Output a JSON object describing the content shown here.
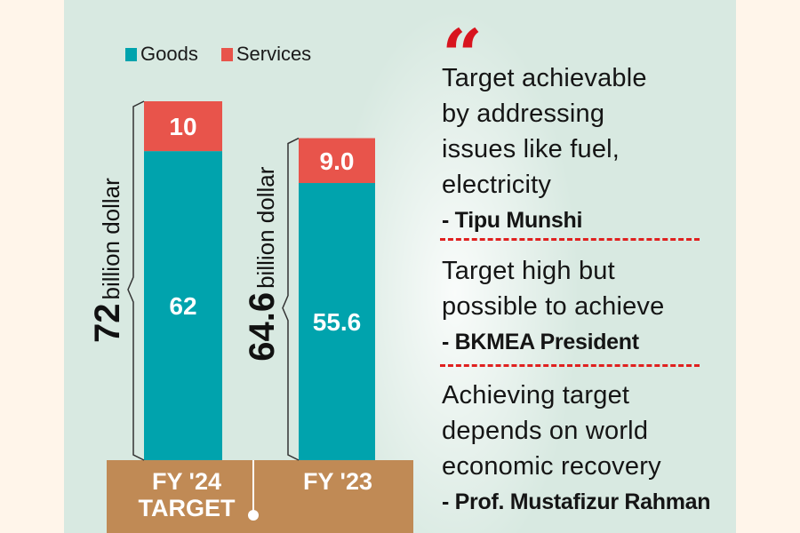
{
  "chart_data": {
    "type": "bar",
    "stacked": true,
    "title": "",
    "xlabel": "",
    "ylabel": "billion dollar",
    "categories": [
      "FY '24 TARGET",
      "FY '23"
    ],
    "category_lines": [
      [
        "FY '24",
        "TARGET"
      ],
      [
        "FY '23"
      ]
    ],
    "series": [
      {
        "name": "Goods",
        "color": "#00A3AD",
        "values": [
          62,
          55.6
        ],
        "labels": [
          "62",
          "55.6"
        ]
      },
      {
        "name": "Services",
        "color": "#E8544B",
        "values": [
          10,
          9.0
        ],
        "labels": [
          "10",
          "9.0"
        ]
      }
    ],
    "totals": [
      {
        "value": 72,
        "label": "72",
        "unit": "billion dollar"
      },
      {
        "value": 64.6,
        "label": "64.6",
        "unit": "billion dollar"
      }
    ],
    "ylim": [
      0,
      72
    ],
    "grid": false,
    "legend_position": "top"
  },
  "legend": {
    "items": [
      {
        "label": "Goods",
        "color": "#00A3AD"
      },
      {
        "label": "Services",
        "color": "#E8544B"
      }
    ]
  },
  "base": {
    "color": "#C08A55",
    "labels": [
      [
        "FY '24",
        "TARGET"
      ],
      [
        "FY '23"
      ]
    ]
  },
  "quote_mark": "“",
  "quotes": [
    {
      "lines": [
        "Target achievable",
        "by addressing",
        "issues like fuel,",
        "electricity"
      ],
      "author": "- Tipu Munshi"
    },
    {
      "lines": [
        "Target high but",
        "possible to achieve"
      ],
      "author": "- BKMEA President"
    },
    {
      "lines": [
        "Achieving target",
        "depends on world",
        "economic recovery"
      ],
      "author": "- Prof. Mustafizur Rahman"
    }
  ],
  "colors": {
    "page_bg": "#FFF5EA",
    "panel_bg": "#D8E9E1",
    "accent_red": "#D8141E",
    "divider": "#E0201F"
  }
}
